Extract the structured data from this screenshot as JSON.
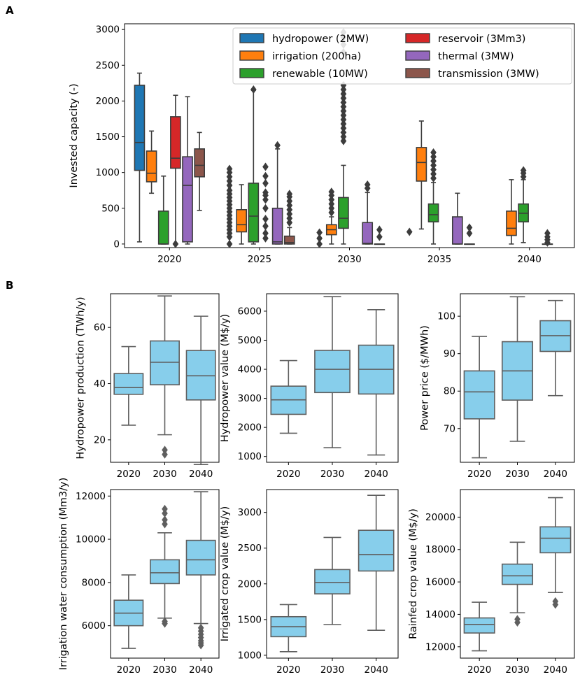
{
  "figure": {
    "panel_a_label": "A",
    "panel_b_label": "B"
  },
  "colors": {
    "hydropower": "#1f77b4",
    "irrigation": "#ff7f0e",
    "renewable": "#2ca02c",
    "reservoir": "#d62728",
    "thermal": "#9467bd",
    "transmission": "#8c564b",
    "panel_b_box": "#87ceeb",
    "line": "#3c3c3c",
    "panel_b_line": "#5f5f5f"
  },
  "chart_data": [
    {
      "id": "invested",
      "type": "box",
      "title": "",
      "xlabel": "",
      "ylabel": "Invested capacity (-)",
      "ylim": [
        -50,
        3080
      ],
      "yticks": [
        0,
        500,
        1000,
        1500,
        2000,
        2500,
        3000
      ],
      "categories": [
        "2020",
        "2025",
        "2030",
        "2035",
        "2040"
      ],
      "legend_position": "top-right",
      "series": [
        {
          "name": "hydropower (2MW)",
          "key": "hydropower",
          "boxes": [
            {
              "q1": 1030,
              "median": 1420,
              "q3": 2220,
              "wlo": 30,
              "whi": 2390,
              "fliers": []
            },
            null,
            null,
            null,
            null
          ]
        },
        {
          "name": "irrigation (200ha)",
          "key": "irrigation",
          "boxes": [
            {
              "q1": 870,
              "median": 990,
              "q3": 1300,
              "wlo": 710,
              "whi": 1580,
              "fliers": []
            },
            {
              "q1": 170,
              "median": 270,
              "q3": 480,
              "wlo": 0,
              "whi": 830,
              "fliers": []
            },
            {
              "q1": 130,
              "median": 200,
              "q3": 270,
              "wlo": 0,
              "whi": 380,
              "fliers": [
                440,
                500,
                560,
                620,
                680,
                730
              ]
            },
            {
              "q1": 880,
              "median": 1140,
              "q3": 1350,
              "wlo": 210,
              "whi": 1720,
              "fliers": []
            },
            {
              "q1": 120,
              "median": 220,
              "q3": 460,
              "wlo": 0,
              "whi": 900,
              "fliers": []
            }
          ]
        },
        {
          "name": "renewable (10MW)",
          "key": "renewable",
          "boxes": [
            {
              "q1": 0,
              "median": 0,
              "q3": 460,
              "wlo": 0,
              "whi": 950,
              "fliers": []
            },
            {
              "q1": 30,
              "median": 390,
              "q3": 850,
              "wlo": 0,
              "whi": 2150,
              "fliers": [
                2160
              ]
            },
            {
              "q1": 220,
              "median": 360,
              "q3": 650,
              "wlo": 0,
              "whi": 1100,
              "fliers": [
                1440,
                1500,
                1560,
                1620,
                1680,
                1740,
                1800,
                1860,
                1920,
                1980,
                2040,
                2100,
                2160,
                2220,
                2680,
                2790,
                2890,
                2960
              ]
            },
            {
              "q1": 310,
              "median": 410,
              "q3": 560,
              "wlo": 0,
              "whi": 860,
              "fliers": [
                920,
                980,
                1040,
                1100,
                1160,
                1220,
                1280
              ]
            },
            {
              "q1": 310,
              "median": 430,
              "q3": 560,
              "wlo": 20,
              "whi": 900,
              "fliers": [
                940,
                990,
                1030
              ]
            }
          ]
        },
        {
          "name": "reservoir (3Mm3)",
          "key": "reservoir",
          "boxes": [
            {
              "q1": 1060,
              "median": 1200,
              "q3": 1780,
              "wlo": 0,
              "whi": 2080,
              "fliers": []
            },
            null,
            null,
            null,
            null
          ]
        },
        {
          "name": "thermal (3MW)",
          "key": "thermal",
          "boxes": [
            {
              "q1": 30,
              "median": 820,
              "q3": 1220,
              "wlo": 0,
              "whi": 2060,
              "fliers": []
            },
            {
              "q1": 0,
              "median": 30,
              "q3": 500,
              "wlo": 0,
              "whi": 1330,
              "fliers": [
                1380
              ]
            },
            {
              "q1": 0,
              "median": 10,
              "q3": 300,
              "wlo": 0,
              "whi": 720,
              "fliers": [
                780,
                830
              ]
            },
            {
              "q1": 0,
              "median": 0,
              "q3": 380,
              "wlo": 0,
              "whi": 710,
              "fliers": []
            },
            {
              "q1": 0,
              "median": 0,
              "q3": 0,
              "wlo": 0,
              "whi": 0,
              "fliers": [
                20,
                60,
                100,
                150
              ]
            }
          ]
        },
        {
          "name": "transmission (3MW)",
          "key": "transmission",
          "boxes": [
            {
              "q1": 940,
              "median": 1100,
              "q3": 1330,
              "wlo": 470,
              "whi": 1560,
              "fliers": []
            },
            {
              "q1": 0,
              "median": 20,
              "q3": 110,
              "wlo": 0,
              "whi": 230,
              "fliers": [
                300,
                360,
                420,
                480,
                540,
                600,
                660,
                700
              ]
            },
            {
              "q1": 0,
              "median": 0,
              "q3": 0,
              "wlo": 0,
              "whi": 0,
              "fliers": [
                100,
                200
              ]
            },
            {
              "q1": 0,
              "median": 0,
              "q3": 0,
              "wlo": 0,
              "whi": 0,
              "fliers": [
                150,
                230
              ]
            },
            null
          ]
        }
      ],
      "extra_fliers": [
        {
          "category": 0,
          "series_index": 1,
          "values": []
        },
        {
          "category": 1,
          "series_index": 0,
          "values": [
            0,
            100,
            150,
            200,
            250,
            300,
            350,
            400,
            450,
            500,
            550,
            600,
            650,
            700,
            750,
            820,
            880,
            940,
            1000,
            1050
          ]
        },
        {
          "category": 1,
          "series_index": 3,
          "values": [
            80,
            150,
            250,
            350,
            500,
            620,
            680,
            720,
            850,
            950,
            1080
          ]
        },
        {
          "category": 2,
          "series_index": 0,
          "values": [
            0,
            80,
            160
          ]
        },
        {
          "category": 3,
          "series_index": 0,
          "values": [
            170
          ]
        },
        {
          "category": 0,
          "series_index": 3,
          "values": [
            0
          ]
        }
      ]
    },
    {
      "id": "hydro_prod",
      "type": "box",
      "ylabel": "Hydropower production (TWh/y)",
      "ylim": [
        12,
        72
      ],
      "yticks": [
        20,
        40,
        60
      ],
      "categories": [
        "2020",
        "2030",
        "2040"
      ],
      "boxes": [
        {
          "q1": 36.2,
          "median": 38.6,
          "q3": 43.6,
          "wlo": 25.2,
          "whi": 53.2,
          "fliers": []
        },
        {
          "q1": 39.6,
          "median": 47.6,
          "q3": 55.2,
          "wlo": 21.8,
          "whi": 71.2,
          "fliers": [
            16.4,
            14.8
          ]
        },
        {
          "q1": 34.2,
          "median": 42.8,
          "q3": 51.8,
          "wlo": 11.2,
          "whi": 64.0,
          "fliers": []
        }
      ]
    },
    {
      "id": "hydro_value",
      "type": "box",
      "ylabel": "Hydropower value (M$/y)",
      "ylim": [
        800,
        6600
      ],
      "yticks": [
        1000,
        2000,
        3000,
        4000,
        5000,
        6000
      ],
      "categories": [
        "2020",
        "2030",
        "2040"
      ],
      "boxes": [
        {
          "q1": 2450,
          "median": 2950,
          "q3": 3420,
          "wlo": 1800,
          "whi": 4300,
          "fliers": []
        },
        {
          "q1": 3200,
          "median": 4000,
          "q3": 4650,
          "wlo": 1300,
          "whi": 6500,
          "fliers": []
        },
        {
          "q1": 3150,
          "median": 4000,
          "q3": 4830,
          "wlo": 1050,
          "whi": 6050,
          "fliers": []
        }
      ]
    },
    {
      "id": "power_price",
      "type": "box",
      "ylabel": "Power price ($/MWh)",
      "ylim": [
        61,
        106
      ],
      "yticks": [
        70,
        80,
        90,
        100
      ],
      "categories": [
        "2020",
        "2030",
        "2040"
      ],
      "boxes": [
        {
          "q1": 72.6,
          "median": 79.8,
          "q3": 85.4,
          "wlo": 62.2,
          "whi": 94.6,
          "fliers": []
        },
        {
          "q1": 77.6,
          "median": 85.4,
          "q3": 93.2,
          "wlo": 66.6,
          "whi": 105.2,
          "fliers": []
        },
        {
          "q1": 90.6,
          "median": 94.8,
          "q3": 98.8,
          "wlo": 78.8,
          "whi": 104.2,
          "fliers": []
        }
      ]
    },
    {
      "id": "irr_water",
      "type": "box",
      "ylabel": "Irrigation water consumption (Mm3/y)",
      "ylim": [
        4500,
        12300
      ],
      "yticks": [
        6000,
        8000,
        10000,
        12000
      ],
      "categories": [
        "2020",
        "2030",
        "2040"
      ],
      "boxes": [
        {
          "q1": 6000,
          "median": 6580,
          "q3": 7180,
          "wlo": 4950,
          "whi": 8350,
          "fliers": []
        },
        {
          "q1": 7950,
          "median": 8450,
          "q3": 9050,
          "wlo": 6350,
          "whi": 10300,
          "fliers": [
            6100,
            6200,
            10700,
            10900,
            11200,
            11400
          ]
        },
        {
          "q1": 8350,
          "median": 9050,
          "q3": 9950,
          "wlo": 6100,
          "whi": 12200,
          "fliers": [
            5100,
            5200,
            5300,
            5450,
            5600,
            5750,
            5900
          ]
        }
      ]
    },
    {
      "id": "irr_crop",
      "type": "box",
      "ylabel": "Irrigated crop value (M$/y)",
      "ylim": [
        960,
        3320
      ],
      "yticks": [
        1000,
        1500,
        2000,
        2500,
        3000
      ],
      "categories": [
        "2020",
        "2030",
        "2040"
      ],
      "boxes": [
        {
          "q1": 1260,
          "median": 1400,
          "q3": 1540,
          "wlo": 1050,
          "whi": 1710,
          "fliers": []
        },
        {
          "q1": 1860,
          "median": 2020,
          "q3": 2200,
          "wlo": 1430,
          "whi": 2650,
          "fliers": []
        },
        {
          "q1": 2180,
          "median": 2410,
          "q3": 2750,
          "wlo": 1350,
          "whi": 3240,
          "fliers": []
        }
      ]
    },
    {
      "id": "rainfed_crop",
      "type": "box",
      "ylabel": "Rainfed crop value (M$/y)",
      "ylim": [
        11300,
        21700
      ],
      "yticks": [
        12000,
        14000,
        16000,
        18000,
        20000
      ],
      "categories": [
        "2020",
        "2030",
        "2040"
      ],
      "boxes": [
        {
          "q1": 12850,
          "median": 13380,
          "q3": 13780,
          "wlo": 11750,
          "whi": 14750,
          "fliers": []
        },
        {
          "q1": 15850,
          "median": 16380,
          "q3": 17100,
          "wlo": 14100,
          "whi": 18450,
          "fliers": [
            13500,
            13700
          ]
        },
        {
          "q1": 17800,
          "median": 18700,
          "q3": 19400,
          "wlo": 15350,
          "whi": 21200,
          "fliers": [
            14600,
            14800
          ]
        }
      ]
    }
  ]
}
